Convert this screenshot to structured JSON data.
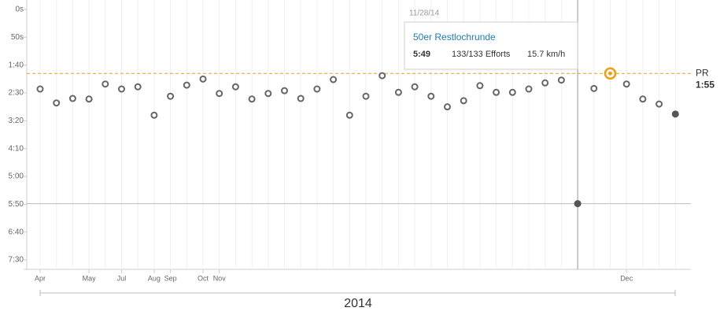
{
  "chart_data": {
    "type": "scatter",
    "categories": [
      "Apr",
      null,
      null,
      "May",
      null,
      "Jul",
      null,
      "Aug",
      "Sep",
      null,
      "Oct",
      "Nov",
      null,
      null,
      null,
      null,
      null,
      null,
      null,
      null,
      null,
      null,
      null,
      null,
      null,
      null,
      null,
      null,
      null,
      null,
      null,
      null,
      null,
      null,
      null,
      null,
      "Dec",
      null,
      null,
      null
    ],
    "values": [
      143,
      168,
      160,
      161,
      134,
      143,
      139,
      190,
      156,
      136,
      125,
      151,
      139,
      161,
      151,
      146,
      160,
      143,
      126,
      190,
      156,
      119,
      149,
      139,
      156,
      175,
      164,
      137,
      149,
      149,
      143,
      132,
      127,
      349,
      142,
      115,
      134,
      161,
      170,
      188
    ],
    "color": "#666666",
    "ylim": [
      0,
      467
    ],
    "yticks": [
      {
        "value": 0,
        "label": "0s"
      },
      {
        "value": 50,
        "label": "50s"
      },
      {
        "value": 100,
        "label": "1:40"
      },
      {
        "value": 150,
        "label": "2:30"
      },
      {
        "value": 200,
        "label": "3:20"
      },
      {
        "value": 250,
        "label": "4:10"
      },
      {
        "value": 300,
        "label": "5:00"
      },
      {
        "value": 350,
        "label": "5:50"
      },
      {
        "value": 400,
        "label": "6:40"
      },
      {
        "value": 450,
        "label": "7:30"
      }
    ],
    "inverted_y": true,
    "xlabel": "2014",
    "pr": {
      "label": "PR",
      "value": 115,
      "value_label": "1:55",
      "color": "#f39c12"
    },
    "selected_index": 33,
    "tooltip": {
      "date": "11/28/14",
      "name": "50er Restlochrunde",
      "time": "5:49",
      "efforts": "133/133 Efforts",
      "speed": "15.7 km/h"
    }
  }
}
